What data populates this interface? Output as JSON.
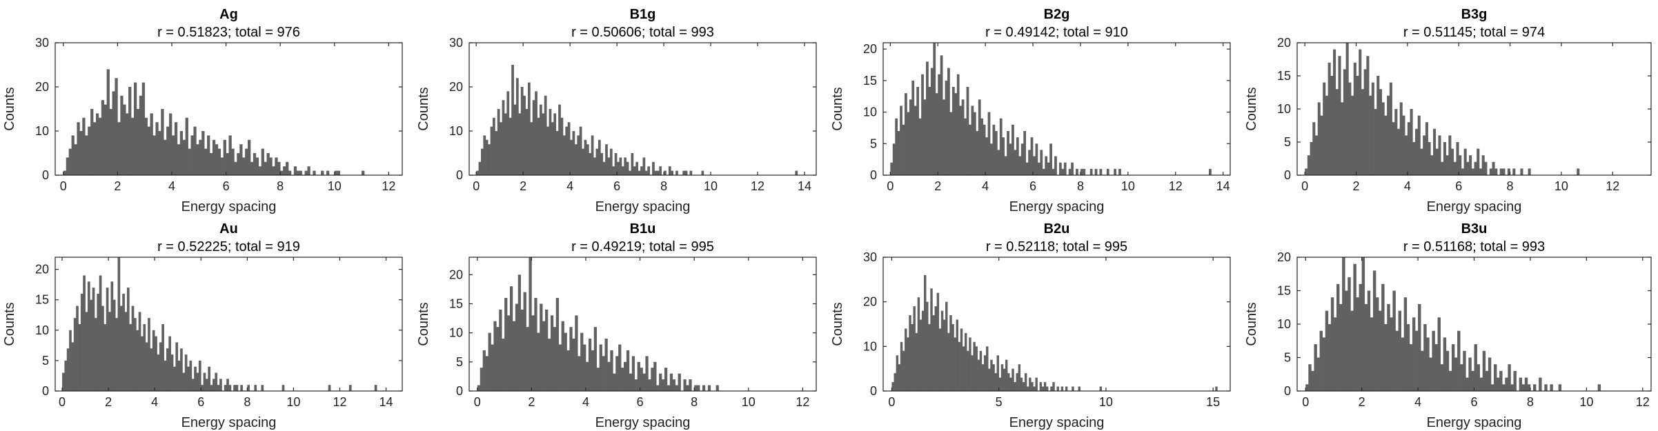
{
  "colors": {
    "bar": "#616161",
    "axis": "#262626",
    "background": "#ffffff"
  },
  "chart_data": [
    {
      "type": "bar",
      "title": "Ag",
      "subtitle": "r = 0.51823; total = 976",
      "xlabel": "Energy spacing",
      "ylabel": "Counts",
      "xlim": [
        -0.3,
        12.5
      ],
      "ylim": [
        0,
        30
      ],
      "xticks": [
        0,
        2,
        4,
        6,
        8,
        10,
        12
      ],
      "yticks": [
        0,
        10,
        20,
        30
      ],
      "grid": false,
      "bin_start": 0,
      "bin_width": 0.1,
      "values": [
        1,
        4,
        6,
        9,
        7,
        12,
        10,
        13,
        9,
        11,
        15,
        12,
        14,
        13,
        17,
        16,
        24,
        15,
        19,
        22,
        12,
        18,
        16,
        14,
        20,
        13,
        21,
        15,
        18,
        21,
        13,
        11,
        14,
        9,
        12,
        10,
        15,
        8,
        11,
        14,
        9,
        12,
        7,
        10,
        8,
        13,
        6,
        9,
        11,
        7,
        8,
        10,
        6,
        9,
        5,
        8,
        7,
        6,
        4,
        8,
        5,
        9,
        6,
        3,
        5,
        7,
        4,
        6,
        8,
        3,
        5,
        4,
        2,
        6,
        3,
        5,
        4,
        2,
        4,
        3,
        1,
        2,
        3,
        1,
        0,
        2,
        1,
        1,
        0,
        1,
        2,
        0,
        1,
        0,
        0,
        1,
        0,
        1,
        0,
        0,
        1,
        1,
        0,
        0,
        0,
        0,
        0,
        0,
        0,
        0,
        1,
        0,
        0,
        0,
        0,
        0,
        0,
        0,
        0,
        0,
        0,
        0,
        0,
        0,
        0,
        0
      ]
    },
    {
      "type": "bar",
      "title": "B1g",
      "subtitle": "r = 0.50606; total = 993",
      "xlabel": "Energy spacing",
      "ylabel": "Counts",
      "xlim": [
        -0.3,
        14.5
      ],
      "ylim": [
        0,
        30
      ],
      "xticks": [
        0,
        2,
        4,
        6,
        8,
        10,
        12,
        14
      ],
      "yticks": [
        0,
        10,
        20,
        30
      ],
      "grid": false,
      "bin_start": 0,
      "bin_width": 0.1,
      "values": [
        1,
        3,
        6,
        9,
        8,
        7,
        11,
        13,
        10,
        15,
        12,
        17,
        14,
        19,
        13,
        25,
        16,
        22,
        14,
        20,
        18,
        15,
        21,
        12,
        17,
        19,
        13,
        16,
        14,
        18,
        11,
        15,
        12,
        14,
        10,
        16,
        13,
        9,
        11,
        12,
        8,
        10,
        7,
        9,
        11,
        6,
        8,
        7,
        5,
        9,
        4,
        6,
        8,
        5,
        3,
        7,
        4,
        6,
        2,
        5,
        3,
        4,
        2,
        4,
        3,
        1,
        5,
        2,
        3,
        1,
        2,
        4,
        1,
        2,
        0,
        3,
        1,
        1,
        2,
        0,
        1,
        0,
        2,
        1,
        0,
        1,
        0,
        0,
        1,
        1,
        0,
        1,
        0,
        0,
        0,
        0,
        1,
        0,
        0,
        0,
        0,
        0,
        0,
        0,
        0,
        0,
        0,
        0,
        0,
        0,
        0,
        0,
        0,
        0,
        0,
        0,
        0,
        0,
        0,
        0,
        0,
        0,
        0,
        0,
        0,
        0,
        0,
        0,
        0,
        0,
        0,
        0,
        0,
        0,
        0,
        0,
        1,
        0,
        0,
        0
      ]
    },
    {
      "type": "bar",
      "title": "B2g",
      "subtitle": "r = 0.49142; total = 910",
      "xlabel": "Energy spacing",
      "ylabel": "Counts",
      "xlim": [
        -0.3,
        14.3
      ],
      "ylim": [
        0,
        21
      ],
      "xticks": [
        0,
        2,
        4,
        6,
        8,
        10,
        12,
        14
      ],
      "yticks": [
        0,
        5,
        10,
        15,
        20
      ],
      "grid": false,
      "bin_start": 0,
      "bin_width": 0.1,
      "values": [
        2,
        5,
        9,
        7,
        11,
        8,
        13,
        10,
        12,
        15,
        11,
        14,
        9,
        16,
        12,
        18,
        14,
        17,
        21,
        13,
        16,
        19,
        12,
        15,
        17,
        10,
        14,
        13,
        16,
        11,
        12,
        9,
        14,
        8,
        11,
        10,
        7,
        12,
        9,
        8,
        6,
        10,
        5,
        8,
        7,
        4,
        9,
        6,
        3,
        7,
        5,
        8,
        4,
        6,
        3,
        5,
        7,
        2,
        4,
        6,
        3,
        5,
        2,
        4,
        1,
        3,
        2,
        5,
        1,
        3,
        0,
        2,
        1,
        2,
        0,
        1,
        2,
        0,
        1,
        0,
        1,
        1,
        0,
        0,
        1,
        0,
        1,
        0,
        1,
        0,
        0,
        1,
        0,
        0,
        1,
        0,
        1,
        0,
        0,
        0,
        0,
        0,
        0,
        0,
        0,
        0,
        0,
        0,
        0,
        0,
        0,
        0,
        0,
        0,
        0,
        0,
        0,
        0,
        0,
        0,
        0,
        0,
        0,
        0,
        0,
        0,
        0,
        0,
        0,
        0,
        0,
        0,
        0,
        0,
        1,
        0
      ]
    },
    {
      "type": "bar",
      "title": "B3g",
      "subtitle": "r = 0.51145; total = 974",
      "xlabel": "Energy spacing",
      "ylabel": "Counts",
      "xlim": [
        -0.3,
        13.5
      ],
      "ylim": [
        0,
        20
      ],
      "xticks": [
        0,
        2,
        4,
        6,
        8,
        10,
        12
      ],
      "yticks": [
        0,
        5,
        10,
        15,
        20
      ],
      "grid": false,
      "bin_start": 0,
      "bin_width": 0.1,
      "values": [
        1,
        3,
        5,
        8,
        6,
        11,
        9,
        14,
        12,
        17,
        15,
        19,
        13,
        18,
        11,
        16,
        20,
        14,
        12,
        17,
        15,
        19,
        13,
        16,
        18,
        12,
        14,
        10,
        15,
        13,
        11,
        9,
        12,
        14,
        8,
        10,
        7,
        11,
        9,
        6,
        8,
        10,
        5,
        7,
        9,
        4,
        6,
        8,
        5,
        3,
        7,
        4,
        6,
        2,
        5,
        3,
        6,
        4,
        2,
        5,
        3,
        1,
        4,
        2,
        3,
        1,
        2,
        4,
        1,
        3,
        2,
        0,
        1,
        2,
        1,
        0,
        1,
        1,
        0,
        1,
        0,
        1,
        0,
        0,
        1,
        0,
        0,
        1,
        0,
        0,
        0,
        0,
        0,
        0,
        0,
        0,
        0,
        0,
        0,
        0,
        0,
        0,
        0,
        0,
        0,
        0,
        1,
        0,
        0,
        0,
        0,
        0,
        0,
        0,
        0,
        0,
        0,
        0,
        0,
        0,
        0,
        0,
        0,
        0,
        0,
        0,
        0,
        0,
        0,
        0,
        0,
        0
      ]
    },
    {
      "type": "bar",
      "title": "Au",
      "subtitle": "r = 0.52225; total = 919",
      "xlabel": "Energy spacing",
      "ylabel": "Counts",
      "xlim": [
        -0.3,
        14.7
      ],
      "ylim": [
        0,
        22
      ],
      "xticks": [
        0,
        2,
        4,
        6,
        8,
        10,
        12,
        14
      ],
      "yticks": [
        0,
        5,
        10,
        15,
        20
      ],
      "grid": false,
      "bin_start": 0,
      "bin_width": 0.1,
      "values": [
        3,
        5,
        7,
        10,
        8,
        12,
        14,
        11,
        16,
        19,
        13,
        18,
        15,
        17,
        12,
        16,
        19,
        14,
        11,
        17,
        13,
        18,
        15,
        12,
        22,
        14,
        16,
        13,
        17,
        11,
        14,
        12,
        10,
        13,
        9,
        11,
        8,
        12,
        7,
        10,
        9,
        6,
        8,
        11,
        5,
        7,
        9,
        6,
        4,
        8,
        5,
        7,
        3,
        6,
        4,
        5,
        2,
        4,
        3,
        5,
        1,
        3,
        2,
        4,
        1,
        2,
        3,
        1,
        2,
        0,
        1,
        2,
        1,
        0,
        1,
        1,
        0,
        1,
        0,
        0,
        1,
        0,
        0,
        1,
        0,
        0,
        1,
        0,
        0,
        0,
        0,
        0,
        0,
        0,
        0,
        1,
        0,
        0,
        0,
        0,
        0,
        0,
        0,
        0,
        0,
        0,
        0,
        0,
        0,
        0,
        0,
        0,
        0,
        0,
        0,
        1,
        0,
        0,
        0,
        0,
        0,
        0,
        0,
        0,
        1,
        0,
        0,
        0,
        0,
        0,
        0,
        0,
        0,
        0,
        0,
        1,
        0,
        0,
        0,
        0
      ]
    },
    {
      "type": "bar",
      "title": "B1u",
      "subtitle": "r = 0.49219; total = 995",
      "xlabel": "Energy spacing",
      "ylabel": "Counts",
      "xlim": [
        -0.3,
        12.5
      ],
      "ylim": [
        0,
        23
      ],
      "xticks": [
        0,
        2,
        4,
        6,
        8,
        10,
        12
      ],
      "yticks": [
        0,
        5,
        10,
        15,
        20
      ],
      "grid": false,
      "bin_start": 0,
      "bin_width": 0.1,
      "values": [
        1,
        4,
        7,
        6,
        10,
        8,
        12,
        11,
        14,
        9,
        16,
        13,
        18,
        12,
        15,
        20,
        14,
        17,
        11,
        23,
        13,
        16,
        10,
        15,
        12,
        14,
        9,
        13,
        11,
        16,
        8,
        12,
        10,
        7,
        11,
        9,
        13,
        6,
        10,
        8,
        5,
        9,
        7,
        11,
        4,
        8,
        6,
        9,
        5,
        7,
        3,
        6,
        8,
        4,
        5,
        7,
        3,
        6,
        2,
        5,
        4,
        3,
        6,
        2,
        4,
        5,
        1,
        3,
        2,
        4,
        1,
        3,
        2,
        1,
        3,
        0,
        2,
        1,
        2,
        0,
        1,
        1,
        0,
        1,
        0,
        1,
        0,
        0,
        1,
        0,
        0,
        0,
        0,
        0,
        0,
        0,
        0,
        0,
        0,
        0,
        0,
        0,
        0,
        0,
        0,
        0,
        0,
        0,
        0,
        0,
        0,
        0,
        0,
        0,
        0,
        0,
        0,
        0,
        0,
        0,
        0,
        0
      ]
    },
    {
      "type": "bar",
      "title": "B2u",
      "subtitle": "r = 0.52118; total = 995",
      "xlabel": "Energy spacing",
      "ylabel": "Counts",
      "xlim": [
        -0.4,
        15.8
      ],
      "ylim": [
        0,
        30
      ],
      "xticks": [
        0,
        5,
        10,
        15
      ],
      "yticks": [
        0,
        10,
        20,
        30
      ],
      "grid": false,
      "bin_start": 0,
      "bin_width": 0.1,
      "values": [
        2,
        4,
        8,
        6,
        11,
        9,
        14,
        12,
        17,
        15,
        19,
        13,
        21,
        16,
        18,
        26,
        20,
        15,
        23,
        17,
        19,
        22,
        14,
        18,
        16,
        20,
        13,
        17,
        15,
        12,
        16,
        11,
        14,
        10,
        13,
        9,
        12,
        8,
        11,
        10,
        7,
        9,
        6,
        8,
        10,
        5,
        7,
        6,
        4,
        8,
        3,
        6,
        5,
        7,
        4,
        3,
        5,
        2,
        4,
        6,
        3,
        2,
        4,
        1,
        3,
        2,
        1,
        3,
        0,
        2,
        1,
        2,
        1,
        0,
        1,
        2,
        0,
        1,
        0,
        1,
        0,
        1,
        0,
        0,
        1,
        0,
        0,
        1,
        0,
        0,
        0,
        0,
        0,
        0,
        0,
        0,
        0,
        1,
        0,
        0,
        0,
        0,
        0,
        0,
        0,
        0,
        0,
        0,
        0,
        0,
        0,
        0,
        0,
        0,
        0,
        0,
        0,
        0,
        0,
        0,
        0,
        0,
        0,
        0,
        0,
        0,
        0,
        0,
        0,
        0,
        0,
        0,
        0,
        0,
        0,
        0,
        0,
        0,
        0,
        0,
        0,
        0,
        0,
        0,
        0,
        0,
        0,
        0,
        0,
        0,
        0,
        1
      ]
    },
    {
      "type": "bar",
      "title": "B3u",
      "subtitle": "r = 0.51168; total = 993",
      "xlabel": "Energy spacing",
      "ylabel": "Counts",
      "xlim": [
        -0.3,
        12.3
      ],
      "ylim": [
        0,
        20
      ],
      "xticks": [
        0,
        2,
        4,
        6,
        8,
        10,
        12
      ],
      "yticks": [
        0,
        5,
        10,
        15,
        20
      ],
      "grid": false,
      "bin_start": 0,
      "bin_width": 0.1,
      "values": [
        1,
        4,
        3,
        7,
        5,
        9,
        8,
        12,
        10,
        14,
        11,
        16,
        13,
        20,
        15,
        17,
        12,
        19,
        14,
        16,
        20,
        13,
        15,
        11,
        18,
        14,
        12,
        16,
        10,
        13,
        11,
        15,
        9,
        12,
        8,
        14,
        10,
        7,
        11,
        9,
        13,
        6,
        10,
        8,
        5,
        9,
        7,
        11,
        4,
        8,
        6,
        3,
        7,
        5,
        9,
        4,
        6,
        2,
        5,
        3,
        7,
        4,
        2,
        6,
        3,
        5,
        1,
        4,
        2,
        3,
        1,
        2,
        4,
        1,
        3,
        0,
        2,
        1,
        2,
        1,
        0,
        1,
        0,
        2,
        0,
        1,
        0,
        1,
        0,
        0,
        1,
        0,
        0,
        0,
        0,
        0,
        0,
        0,
        0,
        0,
        0,
        0,
        0,
        0,
        1,
        0,
        0,
        0,
        0,
        0,
        0,
        0,
        0,
        0,
        0,
        0,
        0,
        0,
        0,
        0,
        0
      ]
    }
  ]
}
